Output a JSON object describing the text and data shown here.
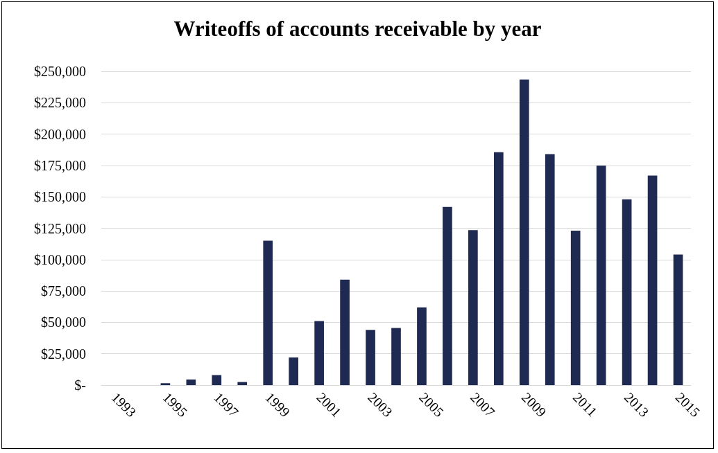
{
  "chart_data": {
    "type": "bar",
    "title": "Writeoffs of accounts receivable by year",
    "categories": [
      "1993",
      null,
      "1995",
      null,
      "1997",
      null,
      "1999",
      null,
      "2001",
      null,
      "2003",
      null,
      "2005",
      null,
      "2007",
      null,
      "2009",
      null,
      "2011",
      null,
      "2013",
      null,
      "2015"
    ],
    "values": [
      0,
      0,
      1500,
      4500,
      8000,
      2500,
      115000,
      22000,
      51000,
      84000,
      44000,
      45500,
      62000,
      142000,
      123500,
      185500,
      243500,
      184000,
      123000,
      175000,
      148000,
      167000,
      104000
    ],
    "color": "#1f2a52",
    "ylim": [
      0,
      250000
    ],
    "yticks": [
      {
        "value": 0,
        "label": "$-"
      },
      {
        "value": 25000,
        "label": "$25,000"
      },
      {
        "value": 50000,
        "label": "$50,000"
      },
      {
        "value": 75000,
        "label": "$75,000"
      },
      {
        "value": 100000,
        "label": "$100,000"
      },
      {
        "value": 125000,
        "label": "$125,000"
      },
      {
        "value": 150000,
        "label": "$150,000"
      },
      {
        "value": 175000,
        "label": "$175,000"
      },
      {
        "value": 200000,
        "label": "$200,000"
      },
      {
        "value": 225000,
        "label": "$225,000"
      },
      {
        "value": 250000,
        "label": "$250,000"
      }
    ],
    "grid": "y"
  }
}
